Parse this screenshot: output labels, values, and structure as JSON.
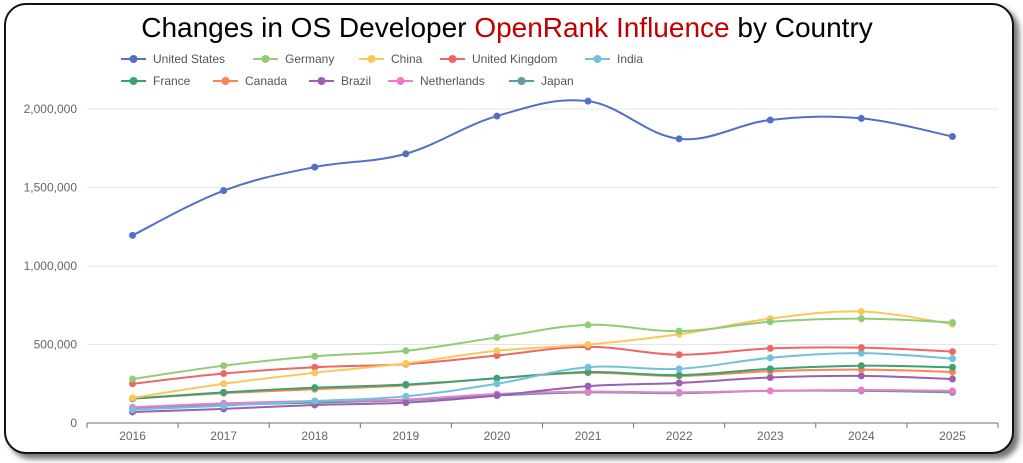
{
  "title": {
    "prefix": "Changes in OS Developer ",
    "highlight": "OpenRank Influence",
    "suffix": " by Country",
    "highlight_color": "#c00000"
  },
  "chart_data": {
    "type": "line",
    "smooth": true,
    "title": "Changes in OS Developer OpenRank Influence by Country",
    "xlabel": "",
    "ylabel": "",
    "x": [
      "2016",
      "2017",
      "2018",
      "2019",
      "2020",
      "2021",
      "2022",
      "2023",
      "2024",
      "2025"
    ],
    "ylim": [
      0,
      2000000
    ],
    "yticks": [
      0,
      500000,
      1000000,
      1500000,
      2000000
    ],
    "ytick_labels": [
      "0",
      "500,000",
      "1,000,000",
      "1,500,000",
      "2,000,000"
    ],
    "grid": "horizontal",
    "legend_position": "top-left",
    "series": [
      {
        "name": "United States",
        "color": "#5470c6",
        "values": [
          1195000,
          1480000,
          1630000,
          1715000,
          1955000,
          2050000,
          1810000,
          1930000,
          1940000,
          1825000
        ]
      },
      {
        "name": "Germany",
        "color": "#91cc75",
        "values": [
          280000,
          365000,
          425000,
          460000,
          545000,
          625000,
          585000,
          645000,
          665000,
          640000
        ]
      },
      {
        "name": "China",
        "color": "#fac858",
        "values": [
          160000,
          250000,
          320000,
          380000,
          460000,
          500000,
          565000,
          665000,
          710000,
          630000
        ]
      },
      {
        "name": "United Kingdom",
        "color": "#ee6666",
        "values": [
          250000,
          315000,
          355000,
          375000,
          430000,
          485000,
          435000,
          475000,
          480000,
          455000
        ]
      },
      {
        "name": "India",
        "color": "#73c0de",
        "values": [
          85000,
          110000,
          140000,
          170000,
          250000,
          355000,
          345000,
          415000,
          445000,
          410000
        ]
      },
      {
        "name": "France",
        "color": "#3ba272",
        "values": [
          155000,
          195000,
          225000,
          245000,
          285000,
          325000,
          305000,
          345000,
          365000,
          355000
        ]
      },
      {
        "name": "Canada",
        "color": "#fc8452",
        "values": [
          155000,
          190000,
          215000,
          240000,
          285000,
          320000,
          300000,
          330000,
          340000,
          325000
        ]
      },
      {
        "name": "Brazil",
        "color": "#9a60b4",
        "values": [
          70000,
          90000,
          115000,
          130000,
          175000,
          235000,
          255000,
          290000,
          300000,
          280000
        ]
      },
      {
        "name": "Netherlands",
        "color": "#ea7ccc",
        "values": [
          100000,
          125000,
          140000,
          150000,
          185000,
          200000,
          195000,
          205000,
          210000,
          205000
        ]
      },
      {
        "name": "Japan",
        "color": "#5f9ea0",
        "values": [
          95000,
          115000,
          130000,
          145000,
          175000,
          195000,
          190000,
          205000,
          205000,
          195000
        ]
      }
    ]
  }
}
